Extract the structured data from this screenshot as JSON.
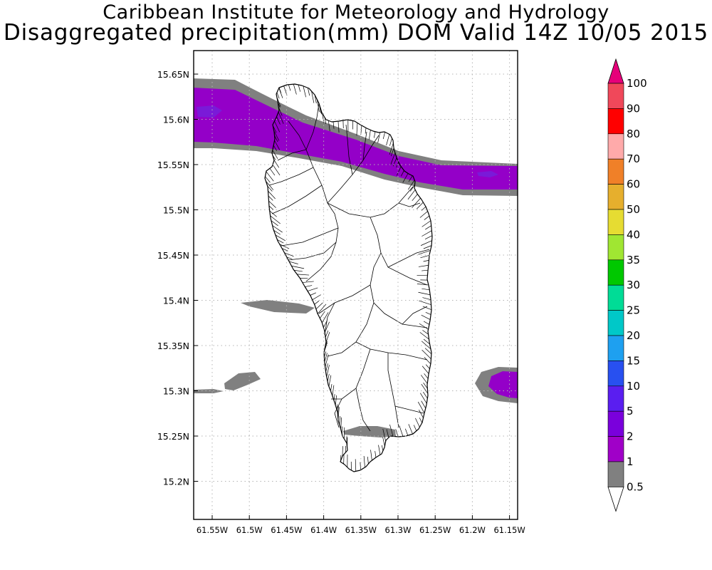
{
  "header": {
    "title": "Caribbean Institute for Meteorology and Hydrology",
    "subtitle": "Disaggregated precipitation(mm) DOM Valid 14Z 10/05 2015"
  },
  "map": {
    "lat_labels": [
      "15.65N",
      "15.6N",
      "15.55N",
      "15.5N",
      "15.45N",
      "15.4N",
      "15.35N",
      "15.3N",
      "15.25N",
      "15.2N"
    ],
    "lon_labels": [
      "61.55W",
      "61.5W",
      "61.45W",
      "61.4W",
      "61.35W",
      "61.3W",
      "61.25W",
      "61.2W",
      "61.15W"
    ],
    "colors": {
      "band_0_5_1": "#808080",
      "band_1_2": "#9400c8",
      "band_2_5": "#7a1ad8",
      "land": "#ffffff",
      "outline": "#000000",
      "grid": "#b4b4b4"
    }
  },
  "colorbar": {
    "labels": [
      "100",
      "90",
      "80",
      "70",
      "60",
      "50",
      "40",
      "35",
      "30",
      "25",
      "20",
      "15",
      "10",
      "5",
      "2",
      "1",
      "0.5"
    ],
    "colors": [
      "#f0485a",
      "#ff0000",
      "#ffaaaa",
      "#f08028",
      "#e6af2d",
      "#e6dc32",
      "#a0e632",
      "#00c800",
      "#00dc96",
      "#00c8c8",
      "#1ea0f0",
      "#2850f0",
      "#5a1ef0",
      "#7a00dc",
      "#a000c8",
      "#808080"
    ],
    "top_arrow_color": "#e6007a",
    "bottom_arrow_color": "#ffffff"
  }
}
